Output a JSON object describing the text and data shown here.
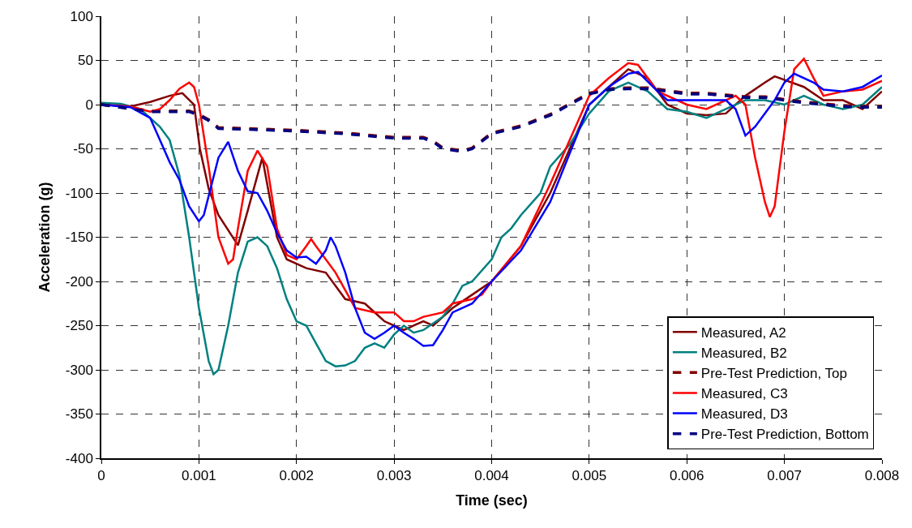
{
  "chart_data": {
    "type": "line",
    "xlabel": "Time (sec)",
    "ylabel": "Acceleration (g)",
    "xlim": [
      0,
      0.008
    ],
    "xticks": [
      0,
      0.001,
      0.002,
      0.003,
      0.004,
      0.005,
      0.006,
      0.007,
      0.008
    ],
    "ylim": [
      -400,
      100
    ],
    "yticks": [
      -400,
      -350,
      -300,
      -250,
      -200,
      -150,
      -100,
      -50,
      0,
      50,
      100
    ],
    "grid": true,
    "legend": "bottom right",
    "marker": "none",
    "series": [
      {
        "name": "Measured, A2",
        "color": "#800000",
        "line_style": "solid",
        "x": [
          0,
          0.0003,
          0.0005,
          0.0007,
          0.00083,
          0.00095,
          0.00101,
          0.0011,
          0.0012,
          0.0014,
          0.0015,
          0.00165,
          0.0018,
          0.0019,
          0.0021,
          0.0023,
          0.0025,
          0.0027,
          0.0029,
          0.003,
          0.0031,
          0.0033,
          0.0034,
          0.0036,
          0.0038,
          0.004,
          0.0043,
          0.0046,
          0.0048,
          0.005,
          0.0052,
          0.0054,
          0.0056,
          0.0058,
          0.006,
          0.0062,
          0.0064,
          0.0066,
          0.0068,
          0.0069,
          0.0072,
          0.0074,
          0.0076,
          0.0078,
          0.008
        ],
        "values": [
          0,
          -2,
          3,
          10,
          13,
          0,
          -50,
          -95,
          -125,
          -159,
          -120,
          -60,
          -150,
          -175,
          -185,
          -190,
          -220,
          -225,
          -245,
          -250,
          -255,
          -245,
          -250,
          -230,
          -215,
          -200,
          -160,
          -100,
          -50,
          0,
          20,
          40,
          30,
          0,
          -10,
          -12,
          -10,
          10,
          25,
          32,
          20,
          5,
          5,
          -5,
          15
        ]
      },
      {
        "name": "Measured, B2",
        "color": "#008080",
        "line_style": "solid",
        "x": [
          0,
          0.0002,
          0.0004,
          0.0005,
          0.0006,
          0.0007,
          0.0008,
          0.0009,
          0.001,
          0.0011,
          0.00115,
          0.0012,
          0.0013,
          0.0014,
          0.0015,
          0.0016,
          0.0017,
          0.0018,
          0.0019,
          0.002,
          0.0021,
          0.0022,
          0.0023,
          0.0024,
          0.0025,
          0.0026,
          0.0027,
          0.0028,
          0.0029,
          0.003,
          0.0031,
          0.0032,
          0.0033,
          0.0035,
          0.0036,
          0.0037,
          0.0038,
          0.004,
          0.0041,
          0.0042,
          0.0043,
          0.0045,
          0.0046,
          0.0048,
          0.005,
          0.0052,
          0.0054,
          0.0056,
          0.0058,
          0.006,
          0.0062,
          0.0064,
          0.0066,
          0.0068,
          0.007,
          0.0072,
          0.0074,
          0.0076,
          0.0078,
          0.008
        ],
        "values": [
          2,
          1,
          -5,
          -15,
          -25,
          -40,
          -80,
          -150,
          -230,
          -290,
          -305,
          -300,
          -250,
          -190,
          -155,
          -150,
          -160,
          -185,
          -220,
          -245,
          -250,
          -270,
          -290,
          -296,
          -295,
          -290,
          -275,
          -270,
          -275,
          -260,
          -250,
          -258,
          -255,
          -240,
          -225,
          -205,
          -200,
          -175,
          -150,
          -140,
          -125,
          -100,
          -70,
          -45,
          -10,
          15,
          25,
          15,
          -5,
          -8,
          -15,
          -5,
          5,
          5,
          0,
          10,
          0,
          -5,
          0,
          20
        ]
      },
      {
        "name": "Pre-Test Prediction, Top",
        "color": "#800000",
        "line_style": "dashed",
        "x": [
          0,
          0.0005,
          0.0009,
          0.001,
          0.0011,
          0.0012,
          0.0015,
          0.002,
          0.0025,
          0.003,
          0.0033,
          0.0034,
          0.0035,
          0.0037,
          0.0038,
          0.004,
          0.0043,
          0.0046,
          0.0048,
          0.005,
          0.0052,
          0.0054,
          0.0056,
          0.0058,
          0.006,
          0.0062,
          0.0064,
          0.0066,
          0.0068,
          0.007,
          0.0072,
          0.0074,
          0.0076,
          0.0078,
          0.008
        ],
        "values": [
          0,
          -7,
          -7,
          -11,
          -17,
          -26,
          -27,
          -29,
          -32,
          -37,
          -37,
          -41,
          -49,
          -52,
          -49,
          -32,
          -24,
          -11,
          1,
          13,
          18,
          19,
          19,
          16,
          13,
          13,
          11,
          9,
          9,
          6,
          3,
          1,
          -1,
          -2,
          -2
        ]
      },
      {
        "name": "Measured, C3",
        "color": "#ff0000",
        "line_style": "solid",
        "x": [
          0,
          0.0003,
          0.0005,
          0.0006,
          0.0007,
          0.0008,
          0.0009,
          0.00095,
          0.001,
          0.0011,
          0.0012,
          0.0013,
          0.00135,
          0.0014,
          0.0015,
          0.0016,
          0.0017,
          0.0018,
          0.0019,
          0.002,
          0.0021,
          0.00215,
          0.0022,
          0.0024,
          0.0025,
          0.0026,
          0.0028,
          0.003,
          0.0031,
          0.0032,
          0.0033,
          0.0035,
          0.0036,
          0.0038,
          0.0039,
          0.004,
          0.0043,
          0.0046,
          0.0048,
          0.005,
          0.0052,
          0.0054,
          0.0055,
          0.0057,
          0.006,
          0.0062,
          0.0064,
          0.0065,
          0.0066,
          0.0067,
          0.0068,
          0.00685,
          0.0069,
          0.007,
          0.0071,
          0.0072,
          0.0073,
          0.0074,
          0.0076,
          0.0078,
          0.008
        ],
        "values": [
          0,
          -2,
          -8,
          -5,
          5,
          18,
          25,
          20,
          0,
          -70,
          -150,
          -180,
          -175,
          -140,
          -75,
          -52,
          -70,
          -140,
          -170,
          -175,
          -160,
          -152,
          -160,
          -190,
          -210,
          -230,
          -235,
          -235,
          -245,
          -245,
          -240,
          -235,
          -225,
          -220,
          -215,
          -200,
          -160,
          -90,
          -40,
          10,
          30,
          47,
          45,
          15,
          0,
          -5,
          5,
          10,
          0,
          -60,
          -110,
          -127,
          -115,
          -30,
          40,
          52,
          30,
          10,
          15,
          17,
          27
        ]
      },
      {
        "name": "Measured, D3",
        "color": "#0000ff",
        "line_style": "solid",
        "x": [
          0,
          0.0003,
          0.0005,
          0.0006,
          0.0007,
          0.0008,
          0.0009,
          0.001,
          0.00105,
          0.0012,
          0.0013,
          0.0014,
          0.0015,
          0.0016,
          0.0017,
          0.0018,
          0.0019,
          0.002,
          0.0021,
          0.0022,
          0.0023,
          0.00235,
          0.0024,
          0.0025,
          0.0026,
          0.0027,
          0.0028,
          0.0029,
          0.003,
          0.0031,
          0.0032,
          0.0033,
          0.0034,
          0.0035,
          0.0036,
          0.0038,
          0.004,
          0.0043,
          0.0046,
          0.0048,
          0.005,
          0.0052,
          0.0054,
          0.0055,
          0.0057,
          0.0058,
          0.006,
          0.0062,
          0.0064,
          0.0065,
          0.0066,
          0.0067,
          0.0069,
          0.007,
          0.0071,
          0.0073,
          0.0074,
          0.0076,
          0.0078,
          0.008
        ],
        "values": [
          0,
          -3,
          -15,
          -40,
          -65,
          -85,
          -115,
          -132,
          -125,
          -60,
          -42,
          -75,
          -98,
          -100,
          -120,
          -145,
          -165,
          -173,
          -172,
          -180,
          -165,
          -150,
          -160,
          -190,
          -230,
          -258,
          -265,
          -258,
          -250,
          -258,
          -265,
          -273,
          -272,
          -255,
          -235,
          -225,
          -200,
          -165,
          -110,
          -55,
          0,
          20,
          35,
          37,
          15,
          5,
          5,
          5,
          5,
          -5,
          -35,
          -25,
          5,
          25,
          35,
          25,
          17,
          15,
          20,
          33
        ]
      },
      {
        "name": "Pre-Test Prediction, Bottom",
        "color": "#000080",
        "line_style": "dashed",
        "x": [
          0,
          0.0005,
          0.0009,
          0.001,
          0.0011,
          0.0012,
          0.0015,
          0.002,
          0.0025,
          0.003,
          0.0033,
          0.0034,
          0.0035,
          0.0037,
          0.0038,
          0.004,
          0.0043,
          0.0046,
          0.0048,
          0.005,
          0.0052,
          0.0054,
          0.0056,
          0.0058,
          0.006,
          0.0062,
          0.0064,
          0.0066,
          0.0068,
          0.007,
          0.0072,
          0.0074,
          0.0076,
          0.0078,
          0.008
        ],
        "values": [
          0,
          -8,
          -8,
          -12,
          -18,
          -27,
          -28,
          -30,
          -33,
          -38,
          -38,
          -42,
          -50,
          -53,
          -50,
          -33,
          -25,
          -12,
          0,
          12,
          17,
          18,
          18,
          15,
          12,
          12,
          10,
          8,
          8,
          5,
          2,
          0,
          -2,
          -3,
          -3
        ]
      }
    ]
  }
}
